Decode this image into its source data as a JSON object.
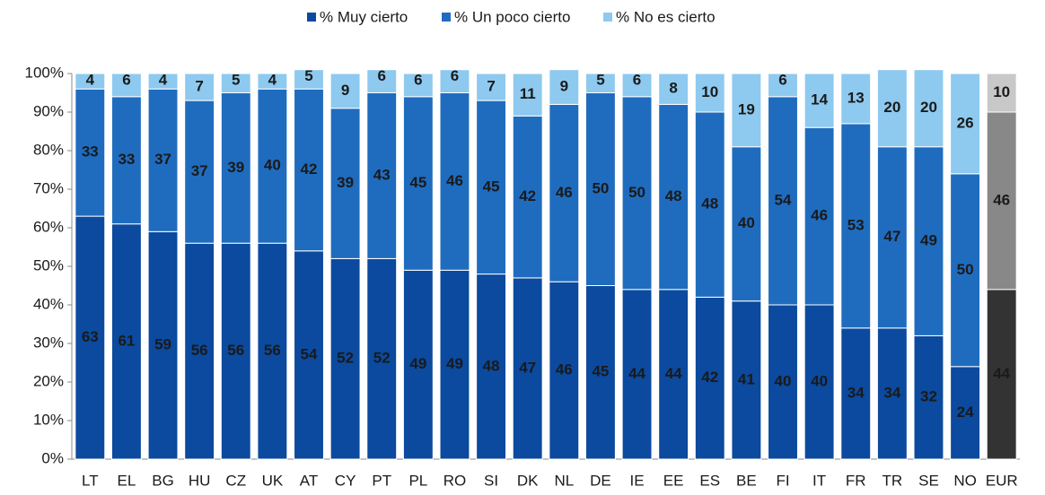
{
  "chart_data": {
    "type": "stacked_bar",
    "categories": [
      "LT",
      "EL",
      "BG",
      "HU",
      "CZ",
      "UK",
      "AT",
      "CY",
      "PT",
      "PL",
      "RO",
      "SI",
      "DK",
      "NL",
      "DE",
      "IE",
      "EE",
      "ES",
      "BE",
      "FI",
      "IT",
      "FR",
      "TR",
      "SE",
      "NO",
      "EUR"
    ],
    "series": [
      {
        "name": "% Muy cierto",
        "color": "#0b4a9e",
        "highlight_color": "#333333",
        "label_color": "#ffffff",
        "values": [
          63,
          61,
          59,
          56,
          56,
          56,
          54,
          52,
          52,
          49,
          49,
          48,
          47,
          46,
          45,
          44,
          44,
          42,
          41,
          40,
          40,
          34,
          34,
          32,
          24,
          44
        ]
      },
      {
        "name": "% Un poco cierto",
        "color": "#1f6cbf",
        "highlight_color": "#888888",
        "label_color": "#ffffff",
        "values": [
          33,
          33,
          37,
          37,
          39,
          40,
          42,
          39,
          43,
          45,
          46,
          45,
          42,
          46,
          50,
          50,
          48,
          48,
          40,
          54,
          46,
          53,
          47,
          49,
          50,
          46
        ]
      },
      {
        "name": "% No es cierto",
        "color": "#8ec9ef",
        "highlight_color": "#c8c8c8",
        "label_color": "#1a1a1a",
        "values": [
          4,
          6,
          4,
          7,
          5,
          4,
          5,
          9,
          6,
          6,
          6,
          7,
          11,
          9,
          5,
          6,
          8,
          10,
          19,
          6,
          14,
          13,
          20,
          20,
          26,
          10
        ]
      }
    ],
    "highlight": "EUR",
    "ylim": [
      0,
      100
    ],
    "yticks": [
      {
        "value": 0,
        "label": "0%"
      },
      {
        "value": 10,
        "label": "10%"
      },
      {
        "value": 20,
        "label": "20%"
      },
      {
        "value": 30,
        "label": "30%"
      },
      {
        "value": 40,
        "label": "40%"
      },
      {
        "value": 50,
        "label": "50%"
      },
      {
        "value": 60,
        "label": "60%"
      },
      {
        "value": 70,
        "label": "70%"
      },
      {
        "value": 80,
        "label": "80%"
      },
      {
        "value": 90,
        "label": "90%"
      },
      {
        "value": 100,
        "label": "100%"
      }
    ],
    "legend": "top"
  }
}
